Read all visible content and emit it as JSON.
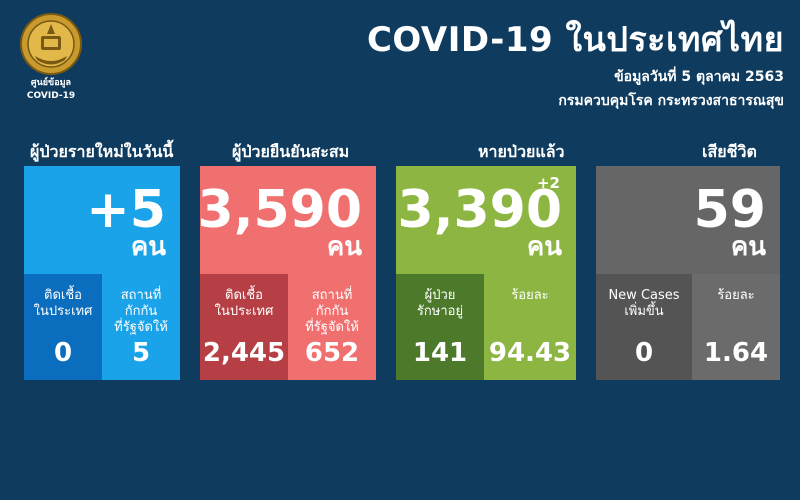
{
  "header": {
    "seal_caption_line1": "ศูนย์ข้อมูล",
    "seal_caption_line2": "COVID-19",
    "title": "COVID-19 ในประเทศไทย",
    "date_line": "ข้อมูลวันที่ 5 ตุลาคม 2563",
    "source_line": "กรมควบคุมโรค กระทรวงสาธารณสุข"
  },
  "unit_label": "คน",
  "cards": [
    {
      "heading": "ผู้ป่วยรายใหม่ในวันนี้",
      "value": "+5",
      "top_color": "#1aa3e8",
      "sub": [
        {
          "label_line1": "ติดเชื้อ",
          "label_line2": "ในประเทศ",
          "label_line3": "",
          "value": "0",
          "color": "#0a6dbd"
        },
        {
          "label_line1": "สถานที่",
          "label_line2": "กักกัน",
          "label_line3": "ที่รัฐจัดให้",
          "value": "5",
          "color": "#1aa3e8"
        }
      ]
    },
    {
      "heading": "ผู้ป่วยยืนยันสะสม",
      "value": "3,590",
      "top_color": "#f07070",
      "sub": [
        {
          "label_line1": "ติดเชื้อ",
          "label_line2": "ในประเทศ",
          "label_line3": "",
          "value": "2,445",
          "color": "#b63f45"
        },
        {
          "label_line1": "สถานที่",
          "label_line2": "กักกัน",
          "label_line3": "ที่รัฐจัดให้",
          "value": "652",
          "color": "#f07070"
        }
      ]
    },
    {
      "heading": "หายป่วยแล้ว",
      "value": "3,390",
      "delta": "+2",
      "top_color": "#8cb541",
      "sub": [
        {
          "label_line1": "ผู้ป่วย",
          "label_line2": "รักษาอยู่",
          "label_line3": "",
          "value": "141",
          "color": "#4d7a2a"
        },
        {
          "label_line1": "ร้อยละ",
          "label_line2": "",
          "label_line3": "",
          "value": "94.43",
          "color": "#8cb541"
        }
      ]
    },
    {
      "heading": "เสียชีวิต",
      "value": "59",
      "top_color": "#666666",
      "sub": [
        {
          "label_line1": "New Cases",
          "label_line2": "เพิ่มขึ้น",
          "label_line3": "",
          "value": "0",
          "color": "#545454"
        },
        {
          "label_line1": "ร้อยละ",
          "label_line2": "",
          "label_line3": "",
          "value": "1.64",
          "color": "#6b6b6b"
        }
      ]
    }
  ]
}
